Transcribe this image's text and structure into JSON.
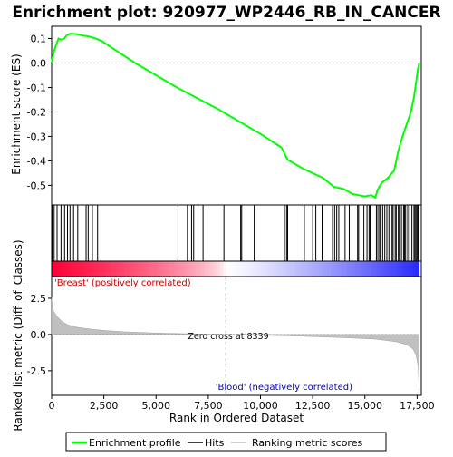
{
  "title": "Enrichment plot: 920977_WP2446_RB_IN_CANCER",
  "top_panel": {
    "ylabel": "Enrichment score (ES)",
    "ylim": [
      -0.58,
      0.15
    ],
    "yticks": [
      0.1,
      0.0,
      -0.1,
      -0.2,
      -0.3,
      -0.4,
      -0.5
    ],
    "ytick_labels": [
      "0.1",
      "0.0",
      "-0.1",
      "-0.2",
      "-0.3",
      "-0.4",
      "-0.5"
    ],
    "line_color": "#00ff00"
  },
  "bottom_panel": {
    "ylabel": "Ranked list metric (Diff_of_Classes)",
    "xlabel": "Rank in Ordered Dataset",
    "ylim": [
      -4.2,
      4.0
    ],
    "yticks": [
      2.5,
      0.0,
      -2.5
    ],
    "ytick_labels": [
      "2.5",
      "0.0",
      "-2.5"
    ],
    "xticks": [
      0,
      2500,
      5000,
      7500,
      10000,
      12500,
      15000,
      17500
    ],
    "xtick_labels": [
      "0",
      "2,500",
      "5,000",
      "7,500",
      "10,000",
      "12,500",
      "15,000",
      "17,500"
    ],
    "zero_cross_label": "Zero cross at 8339",
    "positive_label": "'Breast' (positively correlated)",
    "negative_label": "'Blood' (negatively correlated)",
    "positive_color": "#cc0000",
    "negative_color": "#0000cc"
  },
  "legend": {
    "items": [
      {
        "label": "Enrichment profile",
        "color": "#00ff00"
      },
      {
        "label": "Hits",
        "color": "#000000"
      },
      {
        "label": "Ranking metric scores",
        "color": "#c0c0c0"
      }
    ]
  },
  "chart_data": {
    "type": "line",
    "x_range": [
      0,
      17700
    ],
    "zero_cross": 8339,
    "max_rank": 17600,
    "es_profile": [
      [
        0,
        0.0
      ],
      [
        60,
        0.03
      ],
      [
        120,
        0.05
      ],
      [
        200,
        0.07
      ],
      [
        330,
        0.1
      ],
      [
        450,
        0.095
      ],
      [
        600,
        0.1
      ],
      [
        750,
        0.115
      ],
      [
        900,
        0.12
      ],
      [
        1200,
        0.118
      ],
      [
        1500,
        0.112
      ],
      [
        1800,
        0.108
      ],
      [
        2100,
        0.1
      ],
      [
        2400,
        0.09
      ],
      [
        3000,
        0.055
      ],
      [
        4000,
        0.0
      ],
      [
        5000,
        -0.05
      ],
      [
        6000,
        -0.1
      ],
      [
        7000,
        -0.145
      ],
      [
        8000,
        -0.19
      ],
      [
        9000,
        -0.24
      ],
      [
        10000,
        -0.29
      ],
      [
        11000,
        -0.345
      ],
      [
        11300,
        -0.395
      ],
      [
        12000,
        -0.43
      ],
      [
        13000,
        -0.47
      ],
      [
        13500,
        -0.505
      ],
      [
        14000,
        -0.515
      ],
      [
        14400,
        -0.535
      ],
      [
        14700,
        -0.54
      ],
      [
        15000,
        -0.545
      ],
      [
        15300,
        -0.54
      ],
      [
        15500,
        -0.55
      ],
      [
        15600,
        -0.52
      ],
      [
        15800,
        -0.49
      ],
      [
        16100,
        -0.47
      ],
      [
        16400,
        -0.44
      ],
      [
        16600,
        -0.36
      ],
      [
        16800,
        -0.3
      ],
      [
        17000,
        -0.25
      ],
      [
        17200,
        -0.2
      ],
      [
        17350,
        -0.14
      ],
      [
        17450,
        -0.08
      ],
      [
        17550,
        -0.02
      ],
      [
        17600,
        0.0
      ]
    ],
    "hit_ranks": [
      40,
      120,
      260,
      450,
      620,
      760,
      880,
      1050,
      1250,
      1650,
      1750,
      1950,
      2200,
      6050,
      6500,
      6700,
      6800,
      7250,
      8250,
      9050,
      9100,
      9700,
      11150,
      11250,
      11300,
      12100,
      12500,
      12650,
      12950,
      13450,
      13550,
      13650,
      13750,
      14050,
      14250,
      14650,
      14700,
      14950,
      15100,
      15200,
      15250,
      15550,
      15620,
      15700,
      15750,
      15850,
      15950,
      16050,
      16150,
      16300,
      16350,
      16450,
      16500,
      16600,
      16650,
      16750,
      16850,
      16900,
      16950,
      17050,
      17150,
      17250,
      17350,
      17400,
      17450,
      17500,
      17550
    ],
    "metric_profile": [
      [
        0,
        2.6
      ],
      [
        30,
        1.9
      ],
      [
        100,
        1.6
      ],
      [
        250,
        1.25
      ],
      [
        500,
        0.9
      ],
      [
        800,
        0.65
      ],
      [
        1200,
        0.5
      ],
      [
        1800,
        0.38
      ],
      [
        2500,
        0.28
      ],
      [
        3500,
        0.18
      ],
      [
        5000,
        0.1
      ],
      [
        6500,
        0.05
      ],
      [
        8339,
        0.0
      ],
      [
        10000,
        -0.05
      ],
      [
        12000,
        -0.12
      ],
      [
        14000,
        -0.22
      ],
      [
        15500,
        -0.32
      ],
      [
        16500,
        -0.5
      ],
      [
        17000,
        -0.7
      ],
      [
        17300,
        -1.0
      ],
      [
        17450,
        -1.4
      ],
      [
        17550,
        -2.2
      ],
      [
        17600,
        -3.9
      ]
    ]
  }
}
